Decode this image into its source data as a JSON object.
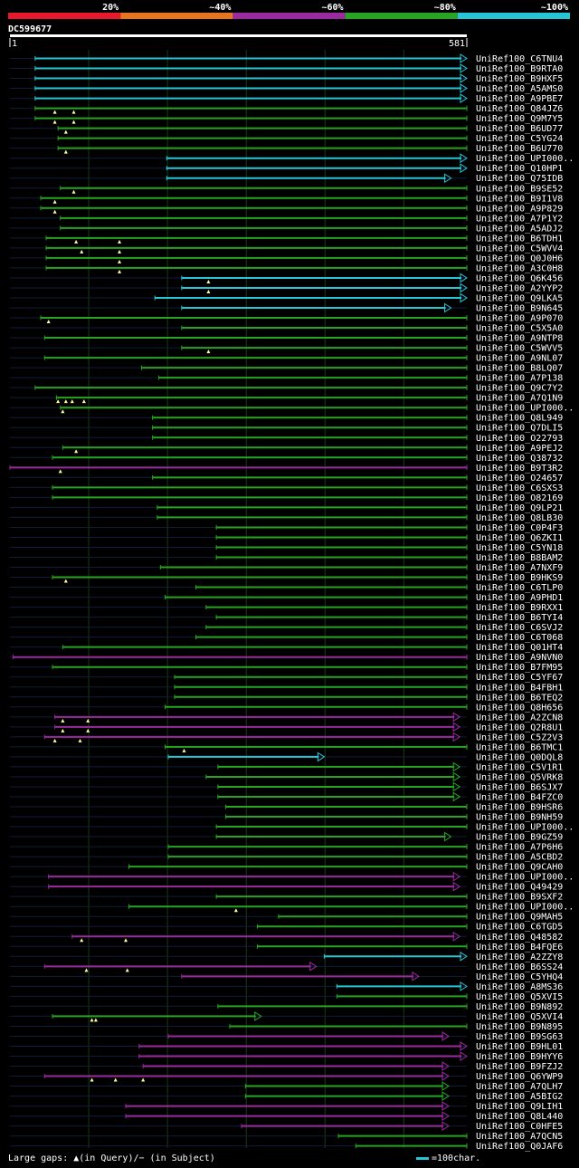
{
  "chart_data": {
    "type": "alignment-overview",
    "title": "DC599677",
    "query_start": "1",
    "query_end": "581",
    "query_length": 581,
    "identity_bins": [
      {
        "label": "20%",
        "color": "#e8192c"
      },
      {
        "label": "~40%",
        "color": "#e8741f"
      },
      {
        "label": "~60%",
        "color": "#9b2aa0"
      },
      {
        "label": "~80%",
        "color": "#27a421"
      },
      {
        "label": "~100%",
        "color": "#26c6d6"
      }
    ],
    "legend": {
      "gaps": "Large gaps: ▲(in Query)/− (in Subject)",
      "scale": "=100char."
    },
    "hits": [
      {
        "name": "UniRef100_C6TNU4",
        "start": 33,
        "end": 581,
        "cls": "c",
        "arrow": true,
        "gaps": []
      },
      {
        "name": "UniRef100_B9RTA0",
        "start": 33,
        "end": 581,
        "cls": "c",
        "arrow": true,
        "gaps": []
      },
      {
        "name": "UniRef100_B9HXF5",
        "start": 33,
        "end": 581,
        "cls": "c",
        "arrow": true,
        "gaps": []
      },
      {
        "name": "UniRef100_A5AMS0",
        "start": 33,
        "end": 581,
        "cls": "c",
        "arrow": true,
        "gaps": []
      },
      {
        "name": "UniRef100_A9PBE7",
        "start": 33,
        "end": 581,
        "cls": "c",
        "arrow": true,
        "gaps": []
      },
      {
        "name": "UniRef100_Q84JZ6",
        "start": 33,
        "end": 581,
        "cls": "g",
        "arrow": false,
        "gaps": [
          58,
          82
        ]
      },
      {
        "name": "UniRef100_Q9M7Y5",
        "start": 33,
        "end": 581,
        "cls": "g",
        "arrow": false,
        "gaps": [
          58,
          82
        ]
      },
      {
        "name": "UniRef100_B6UD77",
        "start": 62,
        "end": 581,
        "cls": "g",
        "arrow": false,
        "gaps": [
          72
        ]
      },
      {
        "name": "UniRef100_C5YG24",
        "start": 62,
        "end": 581,
        "cls": "g",
        "arrow": false,
        "gaps": []
      },
      {
        "name": "UniRef100_B6U770",
        "start": 62,
        "end": 581,
        "cls": "g",
        "arrow": false,
        "gaps": [
          72
        ]
      },
      {
        "name": "UniRef100_UPI000..",
        "start": 200,
        "end": 581,
        "cls": "c",
        "arrow": true,
        "gaps": []
      },
      {
        "name": "UniRef100_Q10HP1",
        "start": 200,
        "end": 581,
        "cls": "c",
        "arrow": true,
        "gaps": []
      },
      {
        "name": "UniRef100_Q75IDB",
        "start": 200,
        "end": 561,
        "cls": "c",
        "arrow": true,
        "gaps": []
      },
      {
        "name": "UniRef100_B9SE52",
        "start": 65,
        "end": 581,
        "cls": "g",
        "arrow": false,
        "gaps": [
          82
        ]
      },
      {
        "name": "UniRef100_B9I1V8",
        "start": 40,
        "end": 581,
        "cls": "g",
        "arrow": false,
        "gaps": [
          58
        ]
      },
      {
        "name": "UniRef100_A9P829",
        "start": 40,
        "end": 581,
        "cls": "g",
        "arrow": false,
        "gaps": [
          58
        ]
      },
      {
        "name": "UniRef100_A7P1Y2",
        "start": 65,
        "end": 581,
        "cls": "g",
        "arrow": false,
        "gaps": []
      },
      {
        "name": "UniRef100_A5ADJ2",
        "start": 65,
        "end": 581,
        "cls": "g",
        "arrow": false,
        "gaps": []
      },
      {
        "name": "UniRef100_B6TDH1",
        "start": 47,
        "end": 581,
        "cls": "g",
        "arrow": false,
        "gaps": [
          85,
          140
        ]
      },
      {
        "name": "UniRef100_C5WVV4",
        "start": 47,
        "end": 581,
        "cls": "g",
        "arrow": false,
        "gaps": [
          92,
          140
        ]
      },
      {
        "name": "UniRef100_Q0J0H6",
        "start": 47,
        "end": 581,
        "cls": "g",
        "arrow": false,
        "gaps": [
          140
        ]
      },
      {
        "name": "UniRef100_A3C0H8",
        "start": 47,
        "end": 581,
        "cls": "g",
        "arrow": false,
        "gaps": [
          140
        ]
      },
      {
        "name": "UniRef100_Q6K456",
        "start": 219,
        "end": 581,
        "cls": "c",
        "arrow": true,
        "gaps": [
          253
        ]
      },
      {
        "name": "UniRef100_A2YYP2",
        "start": 219,
        "end": 581,
        "cls": "c",
        "arrow": true,
        "gaps": [
          253
        ]
      },
      {
        "name": "UniRef100_Q9LKA5",
        "start": 185,
        "end": 581,
        "cls": "c",
        "arrow": true,
        "gaps": []
      },
      {
        "name": "UniRef100_B9N645",
        "start": 219,
        "end": 561,
        "cls": "c",
        "arrow": true,
        "gaps": []
      },
      {
        "name": "UniRef100_A9P070",
        "start": 40,
        "end": 581,
        "cls": "g",
        "arrow": false,
        "gaps": [
          50
        ]
      },
      {
        "name": "UniRef100_C5X5A0",
        "start": 219,
        "end": 581,
        "cls": "g",
        "arrow": false,
        "gaps": []
      },
      {
        "name": "UniRef100_A9NTP8",
        "start": 45,
        "end": 581,
        "cls": "g",
        "arrow": false,
        "gaps": []
      },
      {
        "name": "UniRef100_C5WVV5",
        "start": 219,
        "end": 581,
        "cls": "g",
        "arrow": false,
        "gaps": [
          253
        ]
      },
      {
        "name": "UniRef100_A9NL07",
        "start": 45,
        "end": 581,
        "cls": "g",
        "arrow": false,
        "gaps": []
      },
      {
        "name": "UniRef100_B8LQ07",
        "start": 168,
        "end": 581,
        "cls": "g",
        "arrow": false,
        "gaps": []
      },
      {
        "name": "UniRef100_A7P138",
        "start": 190,
        "end": 581,
        "cls": "g",
        "arrow": false,
        "gaps": []
      },
      {
        "name": "UniRef100_Q9C7Y2",
        "start": 33,
        "end": 581,
        "cls": "g",
        "arrow": false,
        "gaps": []
      },
      {
        "name": "UniRef100_A7Q1N9",
        "start": 60,
        "end": 581,
        "cls": "g",
        "arrow": false,
        "gaps": [
          62,
          72,
          80,
          95
        ]
      },
      {
        "name": "UniRef100_UPI000..",
        "start": 65,
        "end": 581,
        "cls": "g",
        "arrow": false,
        "gaps": [
          68
        ]
      },
      {
        "name": "UniRef100_Q8L949",
        "start": 182,
        "end": 581,
        "cls": "g",
        "arrow": false,
        "gaps": []
      },
      {
        "name": "UniRef100_Q7DLI5",
        "start": 182,
        "end": 581,
        "cls": "g",
        "arrow": false,
        "gaps": []
      },
      {
        "name": "UniRef100_O22793",
        "start": 182,
        "end": 581,
        "cls": "g",
        "arrow": false,
        "gaps": []
      },
      {
        "name": "UniRef100_A9PEJ2",
        "start": 68,
        "end": 581,
        "cls": "g",
        "arrow": false,
        "gaps": [
          85
        ]
      },
      {
        "name": "UniRef100_Q38732",
        "start": 55,
        "end": 581,
        "cls": "g",
        "arrow": false,
        "gaps": []
      },
      {
        "name": "UniRef100_B9T3R2",
        "start": 1,
        "end": 581,
        "cls": "p",
        "arrow": false,
        "gaps": [
          65
        ]
      },
      {
        "name": "UniRef100_O24657",
        "start": 182,
        "end": 581,
        "cls": "g",
        "arrow": false,
        "gaps": []
      },
      {
        "name": "UniRef100_C6SXS3",
        "start": 55,
        "end": 581,
        "cls": "g",
        "arrow": false,
        "gaps": []
      },
      {
        "name": "UniRef100_O82169",
        "start": 55,
        "end": 581,
        "cls": "g",
        "arrow": false,
        "gaps": []
      },
      {
        "name": "UniRef100_Q9LP21",
        "start": 188,
        "end": 581,
        "cls": "g",
        "arrow": false,
        "gaps": []
      },
      {
        "name": "UniRef100_Q8LB30",
        "start": 188,
        "end": 581,
        "cls": "g",
        "arrow": false,
        "gaps": []
      },
      {
        "name": "UniRef100_C0P4F3",
        "start": 263,
        "end": 581,
        "cls": "g",
        "arrow": false,
        "gaps": []
      },
      {
        "name": "UniRef100_Q6ZKI1",
        "start": 263,
        "end": 581,
        "cls": "g",
        "arrow": false,
        "gaps": []
      },
      {
        "name": "UniRef100_C5YN18",
        "start": 263,
        "end": 581,
        "cls": "g",
        "arrow": false,
        "gaps": []
      },
      {
        "name": "UniRef100_B8BAM2",
        "start": 263,
        "end": 581,
        "cls": "g",
        "arrow": false,
        "gaps": []
      },
      {
        "name": "UniRef100_A7NXF9",
        "start": 192,
        "end": 581,
        "cls": "g",
        "arrow": false,
        "gaps": []
      },
      {
        "name": "UniRef100_B9HKS9",
        "start": 55,
        "end": 581,
        "cls": "g",
        "arrow": false,
        "gaps": [
          72
        ]
      },
      {
        "name": "UniRef100_C6TLP0",
        "start": 237,
        "end": 581,
        "cls": "g",
        "arrow": false,
        "gaps": []
      },
      {
        "name": "UniRef100_A9PHD1",
        "start": 198,
        "end": 581,
        "cls": "g",
        "arrow": false,
        "gaps": []
      },
      {
        "name": "UniRef100_B9RXX1",
        "start": 250,
        "end": 581,
        "cls": "g",
        "arrow": false,
        "gaps": []
      },
      {
        "name": "UniRef100_B6TYI4",
        "start": 263,
        "end": 581,
        "cls": "g",
        "arrow": false,
        "gaps": []
      },
      {
        "name": "UniRef100_C6SVJ2",
        "start": 250,
        "end": 581,
        "cls": "g",
        "arrow": false,
        "gaps": []
      },
      {
        "name": "UniRef100_C6T068",
        "start": 237,
        "end": 581,
        "cls": "g",
        "arrow": false,
        "gaps": []
      },
      {
        "name": "UniRef100_Q01HT4",
        "start": 68,
        "end": 581,
        "cls": "g",
        "arrow": false,
        "gaps": []
      },
      {
        "name": "UniRef100_A9NVN0",
        "start": 5,
        "end": 581,
        "cls": "p",
        "arrow": false,
        "gaps": []
      },
      {
        "name": "UniRef100_B7FM95",
        "start": 55,
        "end": 581,
        "cls": "g",
        "arrow": false,
        "gaps": []
      },
      {
        "name": "UniRef100_C5YF67",
        "start": 210,
        "end": 581,
        "cls": "g",
        "arrow": false,
        "gaps": []
      },
      {
        "name": "UniRef100_B4FBH1",
        "start": 210,
        "end": 581,
        "cls": "g",
        "arrow": false,
        "gaps": []
      },
      {
        "name": "UniRef100_B6TEQ2",
        "start": 210,
        "end": 581,
        "cls": "g",
        "arrow": false,
        "gaps": []
      },
      {
        "name": "UniRef100_Q8H656",
        "start": 198,
        "end": 581,
        "cls": "g",
        "arrow": false,
        "gaps": []
      },
      {
        "name": "UniRef100_A2ZCN8",
        "start": 58,
        "end": 572,
        "cls": "p",
        "arrow": true,
        "gaps": [
          68,
          100
        ]
      },
      {
        "name": "UniRef100_Q2R8U1",
        "start": 58,
        "end": 572,
        "cls": "p",
        "arrow": true,
        "gaps": [
          68,
          100
        ]
      },
      {
        "name": "UniRef100_C5Z2V3",
        "start": 45,
        "end": 572,
        "cls": "p",
        "arrow": true,
        "gaps": [
          58,
          90
        ]
      },
      {
        "name": "UniRef100_B6TMC1",
        "start": 198,
        "end": 581,
        "cls": "g",
        "arrow": false,
        "gaps": [
          222
        ]
      },
      {
        "name": "UniRef100_Q0DQL8",
        "start": 202,
        "end": 400,
        "cls": "c",
        "arrow": true,
        "gaps": []
      },
      {
        "name": "UniRef100_C5V1R1",
        "start": 265,
        "end": 572,
        "cls": "g",
        "arrow": true,
        "gaps": []
      },
      {
        "name": "UniRef100_Q5VRK8",
        "start": 250,
        "end": 572,
        "cls": "g",
        "arrow": true,
        "gaps": []
      },
      {
        "name": "UniRef100_B6SJX7",
        "start": 265,
        "end": 572,
        "cls": "g",
        "arrow": true,
        "gaps": []
      },
      {
        "name": "UniRef100_B4FZC0",
        "start": 265,
        "end": 572,
        "cls": "g",
        "arrow": true,
        "gaps": []
      },
      {
        "name": "UniRef100_B9HSR6",
        "start": 275,
        "end": 581,
        "cls": "g",
        "arrow": false,
        "gaps": []
      },
      {
        "name": "UniRef100_B9NH59",
        "start": 275,
        "end": 581,
        "cls": "g",
        "arrow": false,
        "gaps": []
      },
      {
        "name": "UniRef100_UPI000..",
        "start": 263,
        "end": 581,
        "cls": "g",
        "arrow": false,
        "gaps": []
      },
      {
        "name": "UniRef100_B9GZ59",
        "start": 263,
        "end": 561,
        "cls": "g",
        "arrow": true,
        "gaps": []
      },
      {
        "name": "UniRef100_A7P6H6",
        "start": 202,
        "end": 581,
        "cls": "g",
        "arrow": false,
        "gaps": []
      },
      {
        "name": "UniRef100_A5CBD2",
        "start": 202,
        "end": 581,
        "cls": "g",
        "arrow": false,
        "gaps": []
      },
      {
        "name": "UniRef100_Q9CAH0",
        "start": 152,
        "end": 581,
        "cls": "g",
        "arrow": false,
        "gaps": []
      },
      {
        "name": "UniRef100_UPI000..",
        "start": 50,
        "end": 572,
        "cls": "p",
        "arrow": true,
        "gaps": []
      },
      {
        "name": "UniRef100_Q49429",
        "start": 50,
        "end": 572,
        "cls": "p",
        "arrow": true,
        "gaps": []
      },
      {
        "name": "UniRef100_B9SXF2",
        "start": 263,
        "end": 581,
        "cls": "g",
        "arrow": false,
        "gaps": []
      },
      {
        "name": "UniRef100_UPI000..",
        "start": 152,
        "end": 581,
        "cls": "g",
        "arrow": false,
        "gaps": [
          288
        ]
      },
      {
        "name": "UniRef100_Q9MAH5",
        "start": 342,
        "end": 581,
        "cls": "g",
        "arrow": false,
        "gaps": []
      },
      {
        "name": "UniRef100_C6TGD5",
        "start": 315,
        "end": 581,
        "cls": "g",
        "arrow": false,
        "gaps": []
      },
      {
        "name": "UniRef100_Q48582",
        "start": 80,
        "end": 572,
        "cls": "p",
        "arrow": true,
        "gaps": [
          92,
          148
        ]
      },
      {
        "name": "UniRef100_B4FQE6",
        "start": 315,
        "end": 581,
        "cls": "g",
        "arrow": false,
        "gaps": []
      },
      {
        "name": "UniRef100_A2ZZY8",
        "start": 400,
        "end": 581,
        "cls": "c",
        "arrow": true,
        "gaps": []
      },
      {
        "name": "UniRef100_B6SS24",
        "start": 45,
        "end": 390,
        "cls": "p",
        "arrow": true,
        "gaps": [
          98,
          150
        ]
      },
      {
        "name": "UniRef100_C5YHQ4",
        "start": 219,
        "end": 520,
        "cls": "p",
        "arrow": true,
        "gaps": []
      },
      {
        "name": "UniRef100_A8MS36",
        "start": 416,
        "end": 581,
        "cls": "c",
        "arrow": true,
        "gaps": []
      },
      {
        "name": "UniRef100_Q5XVI5",
        "start": 416,
        "end": 581,
        "cls": "g",
        "arrow": false,
        "gaps": []
      },
      {
        "name": "UniRef100_B9N892",
        "start": 265,
        "end": 581,
        "cls": "g",
        "arrow": false,
        "gaps": []
      },
      {
        "name": "UniRef100_Q5XVI4",
        "start": 55,
        "end": 320,
        "cls": "g",
        "arrow": true,
        "gaps": [
          105,
          110
        ]
      },
      {
        "name": "UniRef100_B9N895",
        "start": 280,
        "end": 581,
        "cls": "g",
        "arrow": false,
        "gaps": []
      },
      {
        "name": "UniRef100_B9SG63",
        "start": 202,
        "end": 558,
        "cls": "p",
        "arrow": true,
        "gaps": []
      },
      {
        "name": "UniRef100_B9HL01",
        "start": 165,
        "end": 581,
        "cls": "p",
        "arrow": true,
        "gaps": []
      },
      {
        "name": "UniRef100_B9HYY6",
        "start": 165,
        "end": 581,
        "cls": "p",
        "arrow": true,
        "gaps": []
      },
      {
        "name": "UniRef100_B9FZJ2",
        "start": 170,
        "end": 558,
        "cls": "p",
        "arrow": true,
        "gaps": []
      },
      {
        "name": "UniRef100_Q6YWP9",
        "start": 45,
        "end": 558,
        "cls": "p",
        "arrow": true,
        "gaps": [
          105,
          135,
          170
        ]
      },
      {
        "name": "UniRef100_A7QLH7",
        "start": 300,
        "end": 558,
        "cls": "g",
        "arrow": true,
        "gaps": []
      },
      {
        "name": "UniRef100_A5BIG2",
        "start": 300,
        "end": 558,
        "cls": "g",
        "arrow": true,
        "gaps": []
      },
      {
        "name": "UniRef100_Q9LIH1",
        "start": 148,
        "end": 558,
        "cls": "p",
        "arrow": true,
        "gaps": []
      },
      {
        "name": "UniRef100_Q8L440",
        "start": 148,
        "end": 558,
        "cls": "p",
        "arrow": true,
        "gaps": []
      },
      {
        "name": "UniRef100_C0HFE5",
        "start": 295,
        "end": 558,
        "cls": "p",
        "arrow": true,
        "gaps": []
      },
      {
        "name": "UniRef100_A7QCN5",
        "start": 418,
        "end": 581,
        "cls": "g",
        "arrow": false,
        "gaps": []
      },
      {
        "name": "UniRef100_Q0JAF6",
        "start": 440,
        "end": 581,
        "cls": "g",
        "arrow": false,
        "gaps": []
      }
    ]
  }
}
